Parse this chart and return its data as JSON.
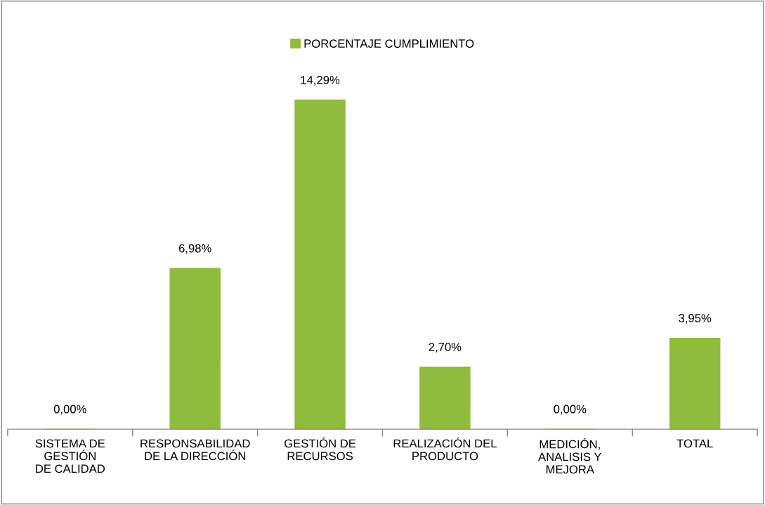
{
  "chart_data": {
    "type": "bar",
    "categories": [
      "SISTEMA DE\nGESTIÓN\nDE CALIDAD",
      "RESPONSABILIDAD\nDE LA DIRECCIÓN",
      "GESTIÓN DE\nRECURSOS",
      "REALIZACIÓN DEL\nPRODUCTO",
      "MEDICIÓN,\nANALISIS Y\nMEJORA",
      "TOTAL"
    ],
    "series": [
      {
        "name": "PORCENTAJE CUMPLIMIENTO",
        "color": "#8fbc3c",
        "values": [
          0,
          6.98,
          14.29,
          2.7,
          0,
          3.95
        ],
        "value_labels": [
          "0,00%",
          "6,98%",
          "14,29%",
          "2,70%",
          "0,00%",
          "3,95%"
        ]
      }
    ],
    "legend": "top",
    "grid": false,
    "tick_labels": "x"
  }
}
